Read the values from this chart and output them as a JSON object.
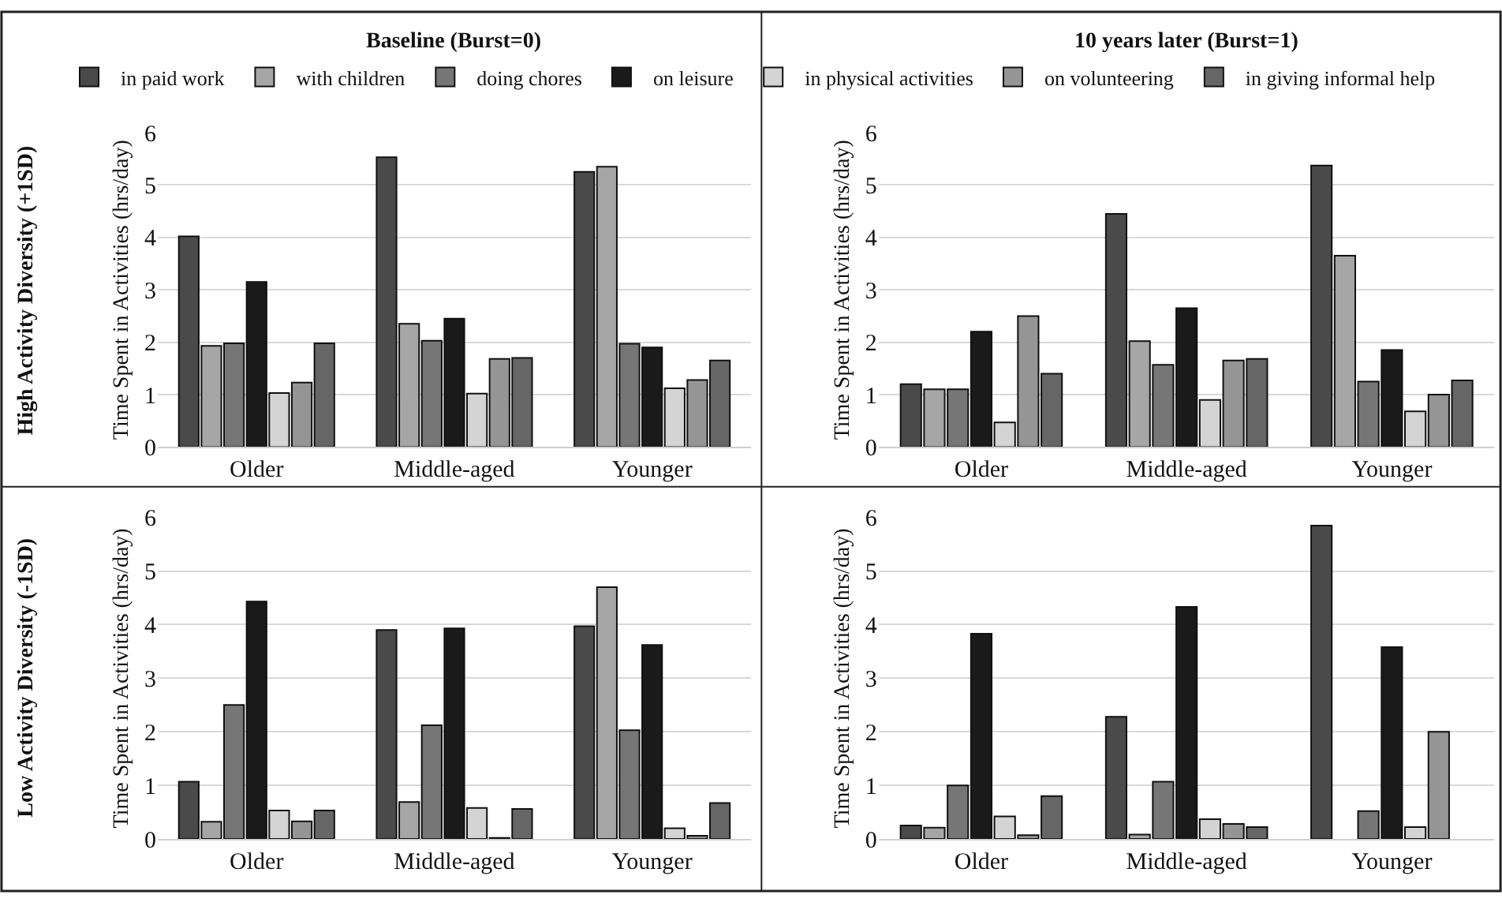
{
  "chart_data": [
    {
      "type": "bar",
      "title": "Baseline (Burst=0)",
      "ylabel": "Time Spent in Activities (hrs/day)",
      "annotations": [
        "High Activity Diversity (+1SD)"
      ],
      "categories": [
        "Older",
        "Middle-aged",
        "Younger"
      ],
      "ylim": [
        0,
        6
      ],
      "yticks": [
        0,
        1,
        2,
        3,
        4,
        5,
        6
      ],
      "grid": "y",
      "legend": "top",
      "series": [
        {
          "name": "in paid work",
          "color": "#4a4a4a",
          "values": [
            4.02,
            5.53,
            5.25
          ]
        },
        {
          "name": "with children",
          "color": "#a6a6a6",
          "values": [
            1.93,
            2.35,
            5.35
          ]
        },
        {
          "name": "doing chores",
          "color": "#767676",
          "values": [
            1.98,
            2.03,
            1.97
          ]
        },
        {
          "name": "on leisure",
          "color": "#1a1a1a",
          "values": [
            3.15,
            2.45,
            1.9
          ]
        },
        {
          "name": "in physical activities",
          "color": "#d4d4d4",
          "values": [
            1.03,
            1.02,
            1.12
          ]
        },
        {
          "name": "on volunteering",
          "color": "#959595",
          "values": [
            1.23,
            1.68,
            1.28
          ]
        },
        {
          "name": "in giving informal help",
          "color": "#666666",
          "values": [
            1.98,
            1.7,
            1.65
          ]
        }
      ]
    },
    {
      "type": "bar",
      "title": "10 years later (Burst=1)",
      "ylabel": "Time Spent in Activities (hrs/day)",
      "categories": [
        "Older",
        "Middle-aged",
        "Younger"
      ],
      "ylim": [
        0,
        6
      ],
      "yticks": [
        0,
        1,
        2,
        3,
        4,
        5,
        6
      ],
      "grid": "y",
      "series": [
        {
          "color": "#4a4a4a",
          "values": [
            1.2,
            4.45,
            5.37
          ]
        },
        {
          "color": "#a6a6a6",
          "values": [
            1.1,
            2.02,
            3.65
          ]
        },
        {
          "color": "#767676",
          "values": [
            1.1,
            1.57,
            1.25
          ]
        },
        {
          "color": "#1a1a1a",
          "values": [
            2.2,
            2.65,
            1.85
          ]
        },
        {
          "color": "#d4d4d4",
          "values": [
            0.47,
            0.9,
            0.68
          ]
        },
        {
          "color": "#959595",
          "values": [
            2.5,
            1.65,
            1.0
          ]
        },
        {
          "color": "#666666",
          "values": [
            1.4,
            1.68,
            1.27
          ]
        }
      ]
    },
    {
      "type": "bar",
      "ylabel": "Time Spent in Activities (hrs/day)",
      "annotations": [
        "Low Activity Diversity (-1SD)"
      ],
      "categories": [
        "Older",
        "Middle-aged",
        "Younger"
      ],
      "ylim": [
        0,
        6
      ],
      "yticks": [
        0,
        1,
        2,
        3,
        4,
        5,
        6
      ],
      "grid": "y",
      "series": [
        {
          "color": "#4a4a4a",
          "values": [
            1.07,
            3.9,
            3.97
          ]
        },
        {
          "color": "#a6a6a6",
          "values": [
            0.32,
            0.69,
            4.7
          ]
        },
        {
          "color": "#767676",
          "values": [
            2.5,
            2.12,
            2.03
          ]
        },
        {
          "color": "#1a1a1a",
          "values": [
            4.43,
            3.93,
            3.62
          ]
        },
        {
          "color": "#d4d4d4",
          "values": [
            0.53,
            0.58,
            0.2
          ]
        },
        {
          "color": "#959595",
          "values": [
            0.33,
            0.02,
            0.06
          ]
        },
        {
          "color": "#666666",
          "values": [
            0.53,
            0.56,
            0.67
          ]
        }
      ]
    },
    {
      "type": "bar",
      "ylabel": "Time Spent in Activities (hrs/day)",
      "categories": [
        "Older",
        "Middle-aged",
        "Younger"
      ],
      "ylim": [
        0,
        6
      ],
      "yticks": [
        0,
        1,
        2,
        3,
        4,
        5,
        6
      ],
      "grid": "y",
      "series": [
        {
          "color": "#4a4a4a",
          "values": [
            0.25,
            2.28,
            5.85
          ]
        },
        {
          "color": "#a6a6a6",
          "values": [
            0.21,
            0.08,
            null
          ]
        },
        {
          "color": "#767676",
          "values": [
            1.0,
            1.07,
            0.52
          ]
        },
        {
          "color": "#1a1a1a",
          "values": [
            3.83,
            4.33,
            3.58
          ]
        },
        {
          "color": "#d4d4d4",
          "values": [
            0.42,
            0.37,
            0.22
          ]
        },
        {
          "color": "#959595",
          "values": [
            0.07,
            0.28,
            2.0
          ]
        },
        {
          "color": "#666666",
          "values": [
            0.8,
            0.22,
            null
          ]
        }
      ]
    }
  ]
}
